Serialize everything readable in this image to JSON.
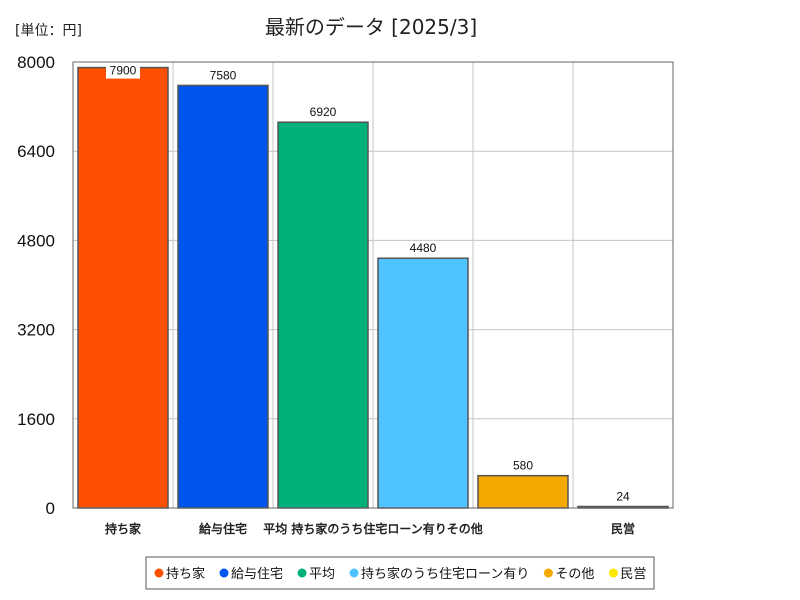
{
  "chart_data": {
    "type": "bar",
    "title": "最新のデータ [2025/3]",
    "unit_label": "[単位：円]",
    "categories": [
      "持ち家",
      "給与住宅",
      "平均",
      "持ち家のうち住宅ローン有り",
      "その他",
      "民営"
    ],
    "values": [
      7900,
      7580,
      6920,
      4480,
      580,
      24
    ],
    "colors": [
      "#ff4f00",
      "#0055ee",
      "#00b07a",
      "#4ec3ff",
      "#f5a800",
      "#ffe800"
    ],
    "x_tick_labels": [
      "持ち家",
      "給与住宅",
      "平均 持ち家のうち住宅ローン有りその他",
      "民営"
    ],
    "y_ticks": [
      "0",
      "1600",
      "3200",
      "4800",
      "6400",
      "8000"
    ],
    "ylim": [
      0,
      8000
    ],
    "grid": true,
    "legend_position": "bottom"
  }
}
